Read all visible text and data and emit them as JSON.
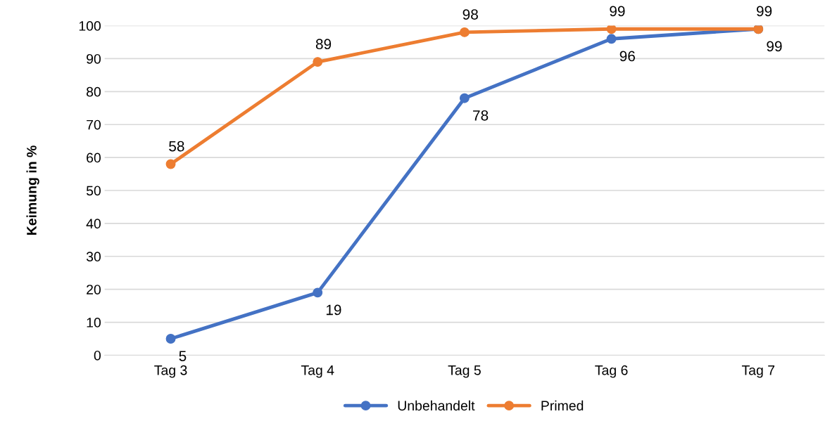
{
  "chart_data": {
    "type": "line",
    "ylabel": "Keimung in %",
    "categories": [
      "Tag 3",
      "Tag 4",
      "Tag 5",
      "Tag 6",
      "Tag 7"
    ],
    "series": [
      {
        "name": "Unbehandelt",
        "color": "#4472c4",
        "values": [
          5,
          19,
          78,
          96,
          99
        ]
      },
      {
        "name": "Primed",
        "color": "#ed7d31",
        "values": [
          58,
          89,
          98,
          99,
          99
        ]
      }
    ],
    "ylim": [
      0,
      100
    ],
    "yticks": [
      0,
      10,
      20,
      30,
      40,
      50,
      60,
      70,
      80,
      90,
      100
    ],
    "grid": "y",
    "legend": "bottom",
    "marker": "circle",
    "line_style": "solid",
    "data_labels": true
  }
}
